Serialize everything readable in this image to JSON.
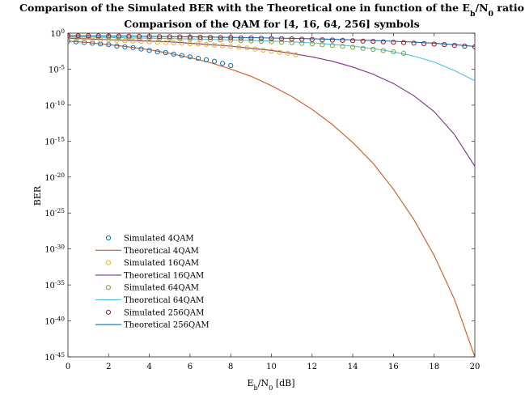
{
  "chart_data": {
    "type": "scatter",
    "title_line1_parts": [
      "Comparison of the Simulated BER with the Theoretical one in function of the E",
      "b",
      "/N",
      "0",
      " ratio"
    ],
    "title_line2": "Comparison of the QAM for [4, 16, 64, 256] symbols",
    "xlabel_parts": [
      "E",
      "b",
      "/N",
      "0",
      " [dB]"
    ],
    "ylabel": "BER",
    "xlim": [
      0,
      20
    ],
    "ylim_log10": [
      -45,
      0
    ],
    "yscale": "log",
    "x_ticks": [
      0,
      2,
      4,
      6,
      8,
      10,
      12,
      14,
      16,
      18,
      20
    ],
    "y_tick_exponents": [
      0,
      -5,
      -10,
      -15,
      -20,
      -25,
      -30,
      -35,
      -40,
      -45
    ],
    "y_tick_base": "10",
    "legend_position": "lower-left",
    "series": [
      {
        "name": "Simulated 4QAM",
        "kind": "marker",
        "color": "#0072BD",
        "x": [
          0,
          0.4,
          0.8,
          1.2,
          1.6,
          2,
          2.4,
          2.8,
          3.2,
          3.6,
          4,
          4.4,
          4.8,
          5.2,
          5.6,
          6,
          6.4,
          6.8,
          7.2,
          7.6,
          8
        ],
        "log10_y": [
          -1.1,
          -1.2,
          -1.3,
          -1.4,
          -1.5,
          -1.6,
          -1.8,
          -1.9,
          -2.0,
          -2.2,
          -2.4,
          -2.6,
          -2.7,
          -2.9,
          -3.1,
          -3.3,
          -3.5,
          -3.7,
          -3.9,
          -4.2,
          -4.5
        ]
      },
      {
        "name": "Theoretical 4QAM",
        "kind": "line",
        "color": "#D95319",
        "x": [
          0,
          1,
          2,
          3,
          4,
          5,
          6,
          7,
          8,
          9,
          10,
          11,
          12,
          13,
          14,
          15,
          16,
          17,
          18,
          19,
          20
        ],
        "log10_y": [
          -1.1,
          -1.3,
          -1.6,
          -1.9,
          -2.3,
          -2.8,
          -3.4,
          -4.1,
          -5.0,
          -6.0,
          -7.3,
          -8.8,
          -10.6,
          -12.7,
          -15.2,
          -18.1,
          -21.7,
          -25.9,
          -30.9,
          -37.0,
          -45.0
        ]
      },
      {
        "name": "Simulated 16QAM",
        "kind": "marker",
        "color": "#EDB120",
        "x": [
          0,
          0.4,
          0.8,
          1.2,
          1.6,
          2,
          2.4,
          2.8,
          3.2,
          3.6,
          4,
          4.4,
          4.8,
          5.2,
          5.6,
          6,
          6.4,
          6.8,
          7.2,
          7.6,
          8,
          8.4,
          8.8,
          9.2,
          9.6,
          10,
          10.4,
          10.8,
          11.2
        ],
        "log10_y": [
          -0.7,
          -0.75,
          -0.8,
          -0.85,
          -0.9,
          -0.95,
          -1.0,
          -1.05,
          -1.1,
          -1.15,
          -1.2,
          -1.25,
          -1.3,
          -1.35,
          -1.4,
          -1.45,
          -1.5,
          -1.55,
          -1.65,
          -1.75,
          -1.85,
          -1.95,
          -2.05,
          -2.2,
          -2.35,
          -2.5,
          -2.65,
          -2.8,
          -3.0
        ]
      },
      {
        "name": "Theoretical 16QAM",
        "kind": "line",
        "color": "#7E2F8E",
        "x": [
          0,
          1,
          2,
          3,
          4,
          5,
          6,
          7,
          8,
          9,
          10,
          11,
          12,
          13,
          14,
          15,
          16,
          17,
          18,
          19,
          20
        ],
        "log10_y": [
          -0.7,
          -0.8,
          -0.9,
          -1.0,
          -1.1,
          -1.2,
          -1.4,
          -1.6,
          -1.8,
          -2.1,
          -2.4,
          -2.8,
          -3.3,
          -3.9,
          -4.7,
          -5.7,
          -7.0,
          -8.7,
          -10.9,
          -14.1,
          -18.5
        ]
      },
      {
        "name": "Simulated 64QAM",
        "kind": "marker",
        "color": "#77AC30",
        "x": [
          0,
          0.5,
          1,
          1.5,
          2,
          2.5,
          3,
          3.5,
          4,
          4.5,
          5,
          5.5,
          6,
          6.5,
          7,
          7.5,
          8,
          8.5,
          9,
          9.5,
          10,
          10.5,
          11,
          11.5,
          12,
          12.5,
          13,
          13.5,
          14,
          14.5,
          15,
          15.5,
          16,
          16.5
        ],
        "log10_y": [
          -0.5,
          -0.52,
          -0.54,
          -0.56,
          -0.58,
          -0.6,
          -0.63,
          -0.66,
          -0.69,
          -0.72,
          -0.75,
          -0.78,
          -0.81,
          -0.85,
          -0.89,
          -0.93,
          -0.97,
          -1.02,
          -1.07,
          -1.13,
          -1.19,
          -1.26,
          -1.33,
          -1.41,
          -1.5,
          -1.6,
          -1.71,
          -1.83,
          -1.96,
          -2.1,
          -2.25,
          -2.42,
          -2.6,
          -2.8
        ]
      },
      {
        "name": "Theoretical 64QAM",
        "kind": "line",
        "color": "#4DBEEE",
        "x": [
          0,
          1,
          2,
          3,
          4,
          5,
          6,
          7,
          8,
          9,
          10,
          11,
          12,
          13,
          14,
          15,
          16,
          17,
          18,
          19,
          20
        ],
        "log10_y": [
          -0.5,
          -0.55,
          -0.6,
          -0.65,
          -0.7,
          -0.75,
          -0.8,
          -0.86,
          -0.93,
          -1.0,
          -1.1,
          -1.2,
          -1.35,
          -1.55,
          -1.8,
          -2.15,
          -2.6,
          -3.2,
          -4.0,
          -5.2,
          -6.6
        ]
      },
      {
        "name": "Simulated 256QAM",
        "kind": "marker",
        "color": "#A2142F",
        "x": [
          0,
          0.5,
          1,
          1.5,
          2,
          2.5,
          3,
          3.5,
          4,
          4.5,
          5,
          5.5,
          6,
          6.5,
          7,
          7.5,
          8,
          8.5,
          9,
          9.5,
          10,
          10.5,
          11,
          11.5,
          12,
          12.5,
          13,
          13.5,
          14,
          14.5,
          15,
          15.5,
          16,
          16.5,
          17,
          17.5,
          18,
          18.5,
          19,
          19.5,
          20
        ],
        "log10_y": [
          -0.35,
          -0.36,
          -0.37,
          -0.38,
          -0.39,
          -0.4,
          -0.42,
          -0.44,
          -0.46,
          -0.48,
          -0.5,
          -0.52,
          -0.54,
          -0.56,
          -0.58,
          -0.6,
          -0.62,
          -0.65,
          -0.68,
          -0.71,
          -0.74,
          -0.77,
          -0.8,
          -0.84,
          -0.88,
          -0.92,
          -0.96,
          -1.0,
          -1.05,
          -1.1,
          -1.15,
          -1.2,
          -1.26,
          -1.32,
          -1.38,
          -1.45,
          -1.52,
          -1.6,
          -1.7,
          -1.8,
          -1.9
        ]
      },
      {
        "name": "Theoretical 256QAM",
        "kind": "line",
        "color": "#0072BD",
        "x": [
          0,
          1,
          2,
          3,
          4,
          5,
          6,
          7,
          8,
          9,
          10,
          11,
          12,
          13,
          14,
          15,
          16,
          17,
          18,
          19,
          20
        ],
        "log10_y": [
          -0.35,
          -0.37,
          -0.39,
          -0.41,
          -0.44,
          -0.47,
          -0.5,
          -0.54,
          -0.58,
          -0.62,
          -0.67,
          -0.72,
          -0.78,
          -0.85,
          -0.93,
          -1.02,
          -1.12,
          -1.25,
          -1.4,
          -1.6,
          -1.85
        ]
      }
    ]
  }
}
